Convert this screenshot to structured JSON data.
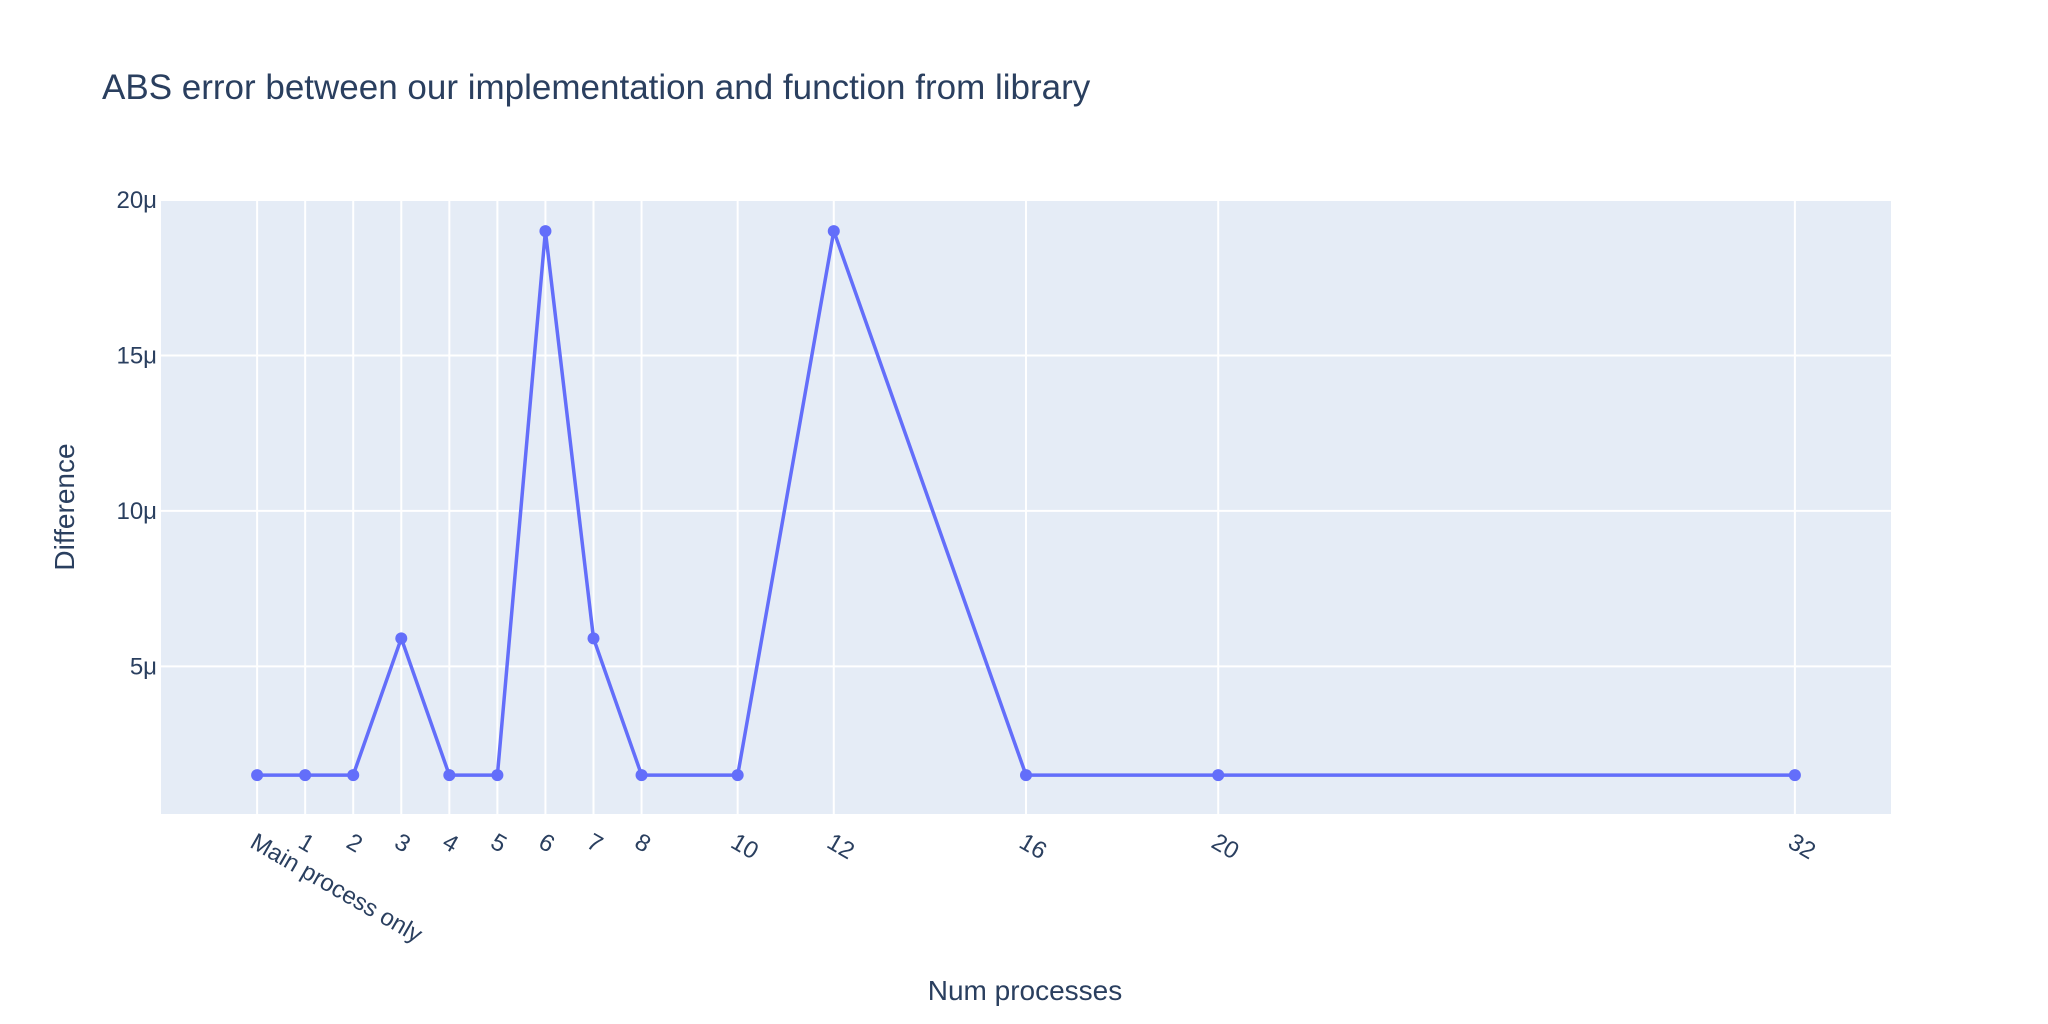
{
  "chart_data": {
    "type": "line",
    "title": "ABS error between our implementation and function from library",
    "xlabel": "Num processes",
    "ylabel": "Difference",
    "categories": [
      "Main process only",
      "1",
      "2",
      "3",
      "4",
      "5",
      "6",
      "7",
      "8",
      "10",
      "12",
      "16",
      "20",
      "32"
    ],
    "x": [
      0,
      1,
      2,
      3,
      4,
      5,
      6,
      7,
      8,
      10,
      12,
      16,
      20,
      32
    ],
    "values": [
      1.5e-06,
      1.5e-06,
      1.5e-06,
      5.9e-06,
      1.5e-06,
      1.5e-06,
      1.9e-05,
      5.9e-06,
      1.5e-06,
      1.5e-06,
      1.9e-05,
      1.5e-06,
      1.5e-06,
      1.5e-06
    ],
    "xlim": [
      -2,
      34
    ],
    "ylim": [
      2.5e-07,
      2e-05
    ],
    "yticks": [
      5e-06,
      1e-05,
      1.5e-05,
      2e-05
    ],
    "ytick_labels": [
      "5μ",
      "10μ",
      "15μ",
      "20μ"
    ],
    "grid": true,
    "colors": {
      "line": "#636efa",
      "plot_bg": "#e5ecf6",
      "grid": "#ffffff",
      "text": "#2a3f5f"
    }
  }
}
